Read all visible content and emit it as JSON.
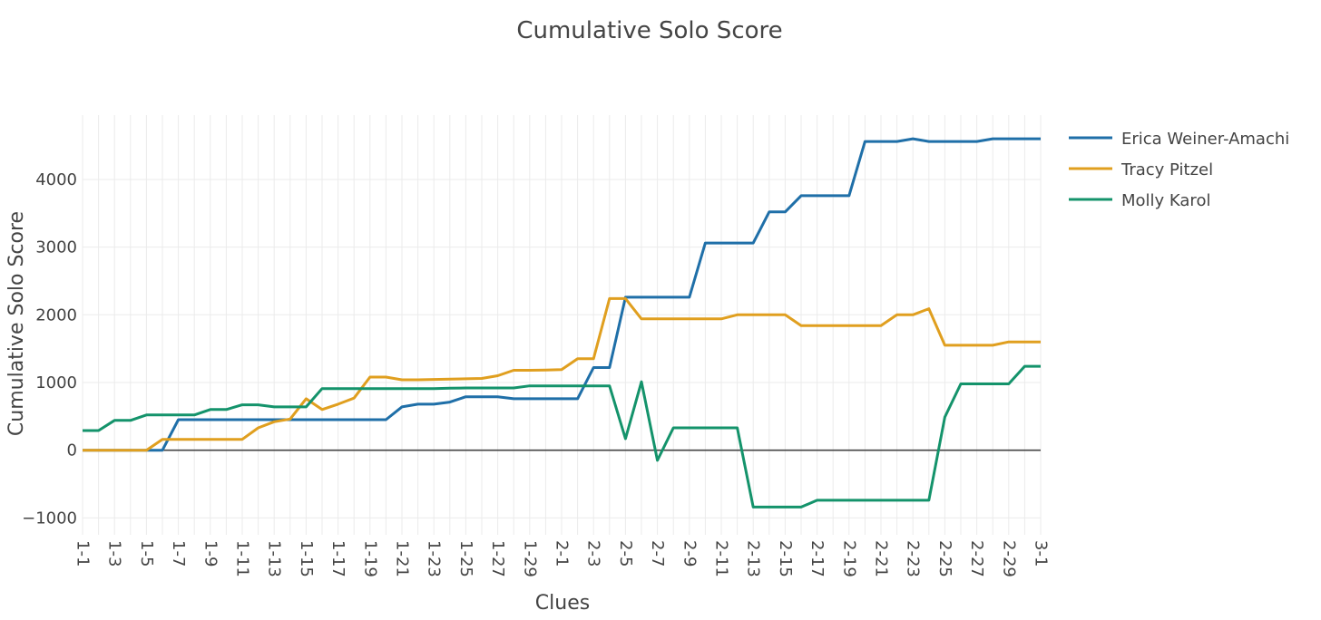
{
  "chart_data": {
    "type": "line",
    "title": "Cumulative Solo Score",
    "xlabel": "Clues",
    "ylabel": "Cumulative Solo Score",
    "ylim": [
      -1250,
      4950
    ],
    "yticks": [
      -1000,
      0,
      1000,
      2000,
      3000,
      4000
    ],
    "ytick_labels": [
      "−1000",
      "0",
      "1000",
      "2000",
      "3000",
      "4000"
    ],
    "grid": true,
    "legend": "right-top",
    "x": [
      "1-1",
      "1-2",
      "1-3",
      "1-4",
      "1-5",
      "1-6",
      "1-7",
      "1-8",
      "1-9",
      "1-10",
      "1-11",
      "1-12",
      "1-13",
      "1-14",
      "1-15",
      "1-16",
      "1-17",
      "1-18",
      "1-19",
      "1-20",
      "1-21",
      "1-22",
      "1-23",
      "1-24",
      "1-25",
      "1-26",
      "1-27",
      "1-28",
      "1-29",
      "1-30",
      "2-1",
      "2-2",
      "2-3",
      "2-4",
      "2-5",
      "2-6",
      "2-7",
      "2-8",
      "2-9",
      "2-10",
      "2-11",
      "2-12",
      "2-13",
      "2-14",
      "2-15",
      "2-16",
      "2-17",
      "2-18",
      "2-19",
      "2-20",
      "2-21",
      "2-22",
      "2-23",
      "2-24",
      "2-25",
      "2-26",
      "2-27",
      "2-28",
      "2-29",
      "2-30",
      "3-1"
    ],
    "x_tick_labels": [
      "1-1",
      "1-3",
      "1-5",
      "1-7",
      "1-9",
      "1-11",
      "1-13",
      "1-15",
      "1-17",
      "1-19",
      "1-21",
      "1-23",
      "1-25",
      "1-27",
      "1-29",
      "2-1",
      "2-3",
      "2-5",
      "2-7",
      "2-9",
      "2-11",
      "2-13",
      "2-15",
      "2-17",
      "2-19",
      "2-21",
      "2-23",
      "2-25",
      "2-27",
      "2-29",
      "3-1"
    ],
    "series": [
      {
        "name": "Erica Weiner-Amachi",
        "color": "#1f6fa8",
        "values": [
          0,
          0,
          0,
          0,
          0,
          0,
          450,
          450,
          450,
          450,
          450,
          450,
          450,
          450,
          450,
          450,
          450,
          450,
          450,
          450,
          640,
          680,
          680,
          710,
          790,
          790,
          790,
          760,
          760,
          760,
          760,
          760,
          1220,
          1220,
          2260,
          2260,
          2260,
          2260,
          2260,
          3060,
          3060,
          3060,
          3060,
          3520,
          3520,
          3760,
          3760,
          3760,
          3760,
          4560,
          4560,
          4560,
          4600,
          4560,
          4560,
          4560,
          4560,
          4600,
          4600,
          4600,
          4600
        ]
      },
      {
        "name": "Tracy Pitzel",
        "color": "#e09f1f",
        "values": [
          0,
          0,
          0,
          0,
          0,
          160,
          160,
          160,
          160,
          160,
          160,
          330,
          420,
          460,
          760,
          600,
          680,
          770,
          1080,
          1080,
          1040,
          1040,
          1045,
          1050,
          1055,
          1060,
          1100,
          1180,
          1180,
          1185,
          1190,
          1350,
          1350,
          2240,
          2240,
          1940,
          1940,
          1940,
          1940,
          1940,
          1940,
          2000,
          2000,
          2000,
          2000,
          1840,
          1840,
          1840,
          1840,
          1840,
          1840,
          2000,
          2000,
          2090,
          1550,
          1550,
          1550,
          1550,
          1600,
          1600,
          1600
        ]
      },
      {
        "name": "Molly Karol",
        "color": "#14936b",
        "values": [
          290,
          290,
          440,
          440,
          520,
          520,
          520,
          520,
          600,
          600,
          670,
          670,
          640,
          640,
          640,
          910,
          910,
          910,
          910,
          910,
          910,
          910,
          910,
          915,
          920,
          920,
          920,
          920,
          950,
          950,
          950,
          950,
          950,
          950,
          170,
          1010,
          -150,
          330,
          330,
          330,
          330,
          330,
          -840,
          -840,
          -840,
          -840,
          -740,
          -740,
          -740,
          -740,
          -740,
          -740,
          -740,
          -740,
          490,
          980,
          980,
          980,
          980,
          1240,
          1240
        ]
      }
    ]
  }
}
